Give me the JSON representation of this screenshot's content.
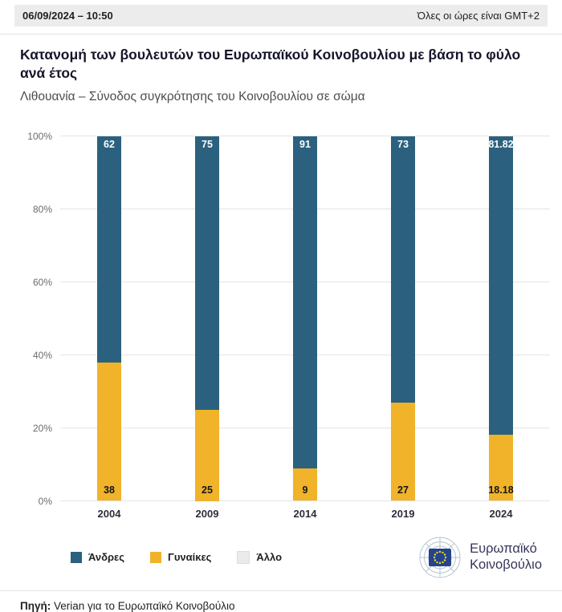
{
  "topbar": {
    "datetime": "06/09/2024 – 10:50",
    "timezone": "Όλες οι ώρες είναι GMT+2"
  },
  "title": "Κατανομή των βουλευτών του Ευρωπαϊκού Κοινοβουλίου με βάση το φύλο ανά έτος",
  "subtitle": "Λιθουανία – Σύνοδος συγκρότησης του Κοινοβουλίου σε σώμα",
  "chart_data": {
    "type": "bar",
    "stacked": true,
    "unit": "%",
    "categories": [
      "2004",
      "2009",
      "2014",
      "2019",
      "2024"
    ],
    "series": [
      {
        "name": "Άνδρες",
        "color": "#2b617e",
        "values": [
          62,
          75,
          91,
          73,
          81.82
        ],
        "labels": [
          "62",
          "75",
          "91",
          "73",
          "81.82"
        ],
        "label_color": "#ffffff",
        "label_position": "top"
      },
      {
        "name": "Γυναίκες",
        "color": "#f0b32a",
        "values": [
          38,
          25,
          9,
          27,
          18.18
        ],
        "labels": [
          "38",
          "25",
          "9",
          "27",
          "18.18"
        ],
        "label_color": "#161616",
        "label_position": "bottom"
      },
      {
        "name": "Άλλο",
        "color": "#ebebeb",
        "values": [
          0,
          0,
          0,
          0,
          0
        ],
        "labels": [
          "",
          "",
          "",
          "",
          ""
        ],
        "label_color": "#161616",
        "label_position": "none"
      }
    ],
    "ylim": [
      0,
      100
    ],
    "yticks": [
      {
        "value": 0,
        "label": "0%"
      },
      {
        "value": 20,
        "label": "20%"
      },
      {
        "value": 40,
        "label": "40%"
      },
      {
        "value": 60,
        "label": "60%"
      },
      {
        "value": 80,
        "label": "80%"
      },
      {
        "value": 100,
        "label": "100%"
      }
    ],
    "grid": true,
    "legend_position": "bottom-left"
  },
  "brand": {
    "line1": "Ευρωπαϊκό",
    "line2": "Κοινοβούλιο"
  },
  "source": {
    "label": "Πηγή:",
    "text": "Verian για το Ευρωπαϊκό Κοινοβούλιο"
  }
}
